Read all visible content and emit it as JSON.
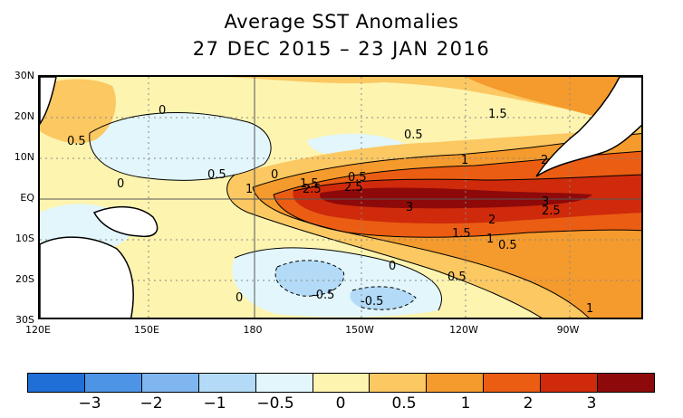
{
  "title": {
    "line1": "Average SST Anomalies",
    "line2": "27 DEC 2015 – 23 JAN 2016"
  },
  "map": {
    "y_labels": [
      "30N",
      "20N",
      "10N",
      "EQ",
      "10S",
      "20S",
      "30S"
    ],
    "x_labels": [
      "120E",
      "150E",
      "180",
      "150W",
      "120W",
      "90W"
    ],
    "contour_labels": [
      "0",
      "0.5",
      "0.5",
      "0",
      "0.5",
      "0",
      "1",
      "1.5",
      "2.5",
      "2.5",
      "3",
      "3",
      "2.5",
      "2",
      "1.5",
      "1",
      "0.5",
      "1.5",
      "0.5",
      "1",
      "2",
      "0",
      "0.5",
      "-0.5",
      "-0.5",
      "0",
      "1"
    ]
  },
  "colorbar": {
    "colors": [
      "#1f6fd6",
      "#4d93e6",
      "#7fb6f0",
      "#b3dbf7",
      "#e2f6fb",
      "#fdf4b0",
      "#fbc862",
      "#f59a2c",
      "#ea5d13",
      "#cf2a0b",
      "#8e0a0a"
    ],
    "labels": [
      "−3",
      "−2",
      "−1",
      "−0.5",
      "0",
      "0.5",
      "1",
      "2",
      "3"
    ]
  }
}
